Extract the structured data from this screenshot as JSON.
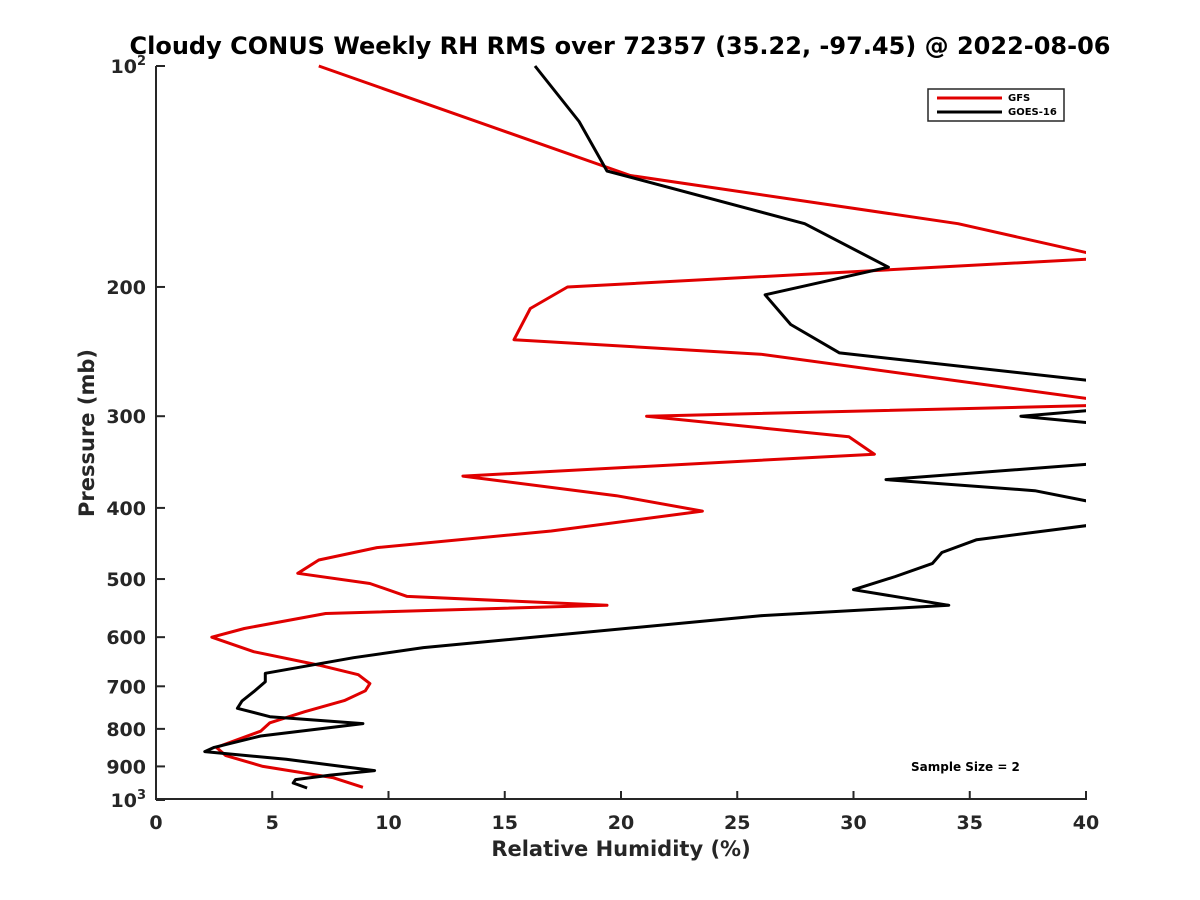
{
  "chart_data": {
    "type": "line",
    "title": "Cloudy CONUS Weekly RH RMS over 72357 (35.22, -97.45) @ 2022-08-06",
    "xlabel": "Relative Humidity (%)",
    "ylabel": "Pressure (mb)",
    "xlim": [
      0,
      40
    ],
    "ylim": [
      100,
      1000
    ],
    "y_scale": "log",
    "y_direction": "reversed",
    "grid": false,
    "legend_position": "top-right",
    "x_ticks": [
      "0",
      "5",
      "10",
      "15",
      "20",
      "25",
      "30",
      "35",
      "40"
    ],
    "y_ticks": [
      {
        "value": 100,
        "label": "10",
        "sup": "2"
      },
      {
        "value": 200,
        "label": "200"
      },
      {
        "value": 300,
        "label": "300"
      },
      {
        "value": 400,
        "label": "400"
      },
      {
        "value": 500,
        "label": "500"
      },
      {
        "value": 600,
        "label": "600"
      },
      {
        "value": 700,
        "label": "700"
      },
      {
        "value": 800,
        "label": "800"
      },
      {
        "value": 900,
        "label": "900"
      },
      {
        "value": 1000,
        "label": "10",
        "sup": "3"
      }
    ],
    "annotation": "Sample Size = 2",
    "series": [
      {
        "name": "GFS",
        "color": "#e00000",
        "points": [
          [
            7.0,
            100
          ],
          [
            20.4,
            141
          ],
          [
            34.5,
            164
          ],
          [
            40.5,
            181
          ],
          [
            40.5,
            183
          ],
          [
            17.7,
            200
          ],
          [
            16.1,
            214
          ],
          [
            15.4,
            236
          ],
          [
            26.0,
            247
          ],
          [
            40.5,
            285
          ],
          [
            40.5,
            290
          ],
          [
            21.1,
            300
          ],
          [
            29.8,
            320
          ],
          [
            30.9,
            338
          ],
          [
            13.2,
            362
          ],
          [
            19.8,
            385
          ],
          [
            23.5,
            404
          ],
          [
            17.0,
            430
          ],
          [
            9.5,
            453
          ],
          [
            7.0,
            471
          ],
          [
            6.1,
            491
          ],
          [
            9.2,
            507
          ],
          [
            10.8,
            528
          ],
          [
            19.4,
            543
          ],
          [
            7.3,
            557
          ],
          [
            3.8,
            584
          ],
          [
            2.4,
            600
          ],
          [
            4.2,
            628
          ],
          [
            7.0,
            655
          ],
          [
            8.7,
            675
          ],
          [
            9.2,
            694
          ],
          [
            9.0,
            710
          ],
          [
            8.1,
            732
          ],
          [
            6.4,
            758
          ],
          [
            4.9,
            785
          ],
          [
            4.5,
            806
          ],
          [
            2.6,
            848
          ],
          [
            3.0,
            870
          ],
          [
            4.6,
            900
          ],
          [
            7.6,
            932
          ],
          [
            8.9,
            961
          ]
        ]
      },
      {
        "name": "GOES-16",
        "color": "#000000",
        "points": [
          [
            16.3,
            100
          ],
          [
            18.2,
            119
          ],
          [
            19.4,
            139
          ],
          [
            27.9,
            164
          ],
          [
            31.5,
            188
          ],
          [
            26.2,
            205
          ],
          [
            27.3,
            225
          ],
          [
            29.4,
            246
          ],
          [
            40.5,
            269
          ],
          [
            40.5,
            294
          ],
          [
            37.2,
            300
          ],
          [
            40.5,
            307
          ],
          [
            40.5,
            348
          ],
          [
            31.4,
            366
          ],
          [
            37.8,
            379
          ],
          [
            40.5,
            394
          ],
          [
            40.5,
            421
          ],
          [
            35.3,
            442
          ],
          [
            33.8,
            460
          ],
          [
            33.4,
            476
          ],
          [
            31.8,
            496
          ],
          [
            30.0,
            517
          ],
          [
            34.1,
            543
          ],
          [
            26.0,
            561
          ],
          [
            11.5,
            620
          ],
          [
            8.5,
            640
          ],
          [
            4.7,
            672
          ],
          [
            4.7,
            690
          ],
          [
            4.2,
            712
          ],
          [
            3.7,
            733
          ],
          [
            3.5,
            750
          ],
          [
            4.9,
            770
          ],
          [
            8.9,
            787
          ],
          [
            4.5,
            818
          ],
          [
            2.5,
            848
          ],
          [
            2.1,
            859
          ],
          [
            5.6,
            880
          ],
          [
            9.4,
            912
          ],
          [
            7.5,
            925
          ],
          [
            6.0,
            938
          ],
          [
            5.9,
            948
          ],
          [
            6.5,
            963
          ]
        ]
      }
    ]
  }
}
